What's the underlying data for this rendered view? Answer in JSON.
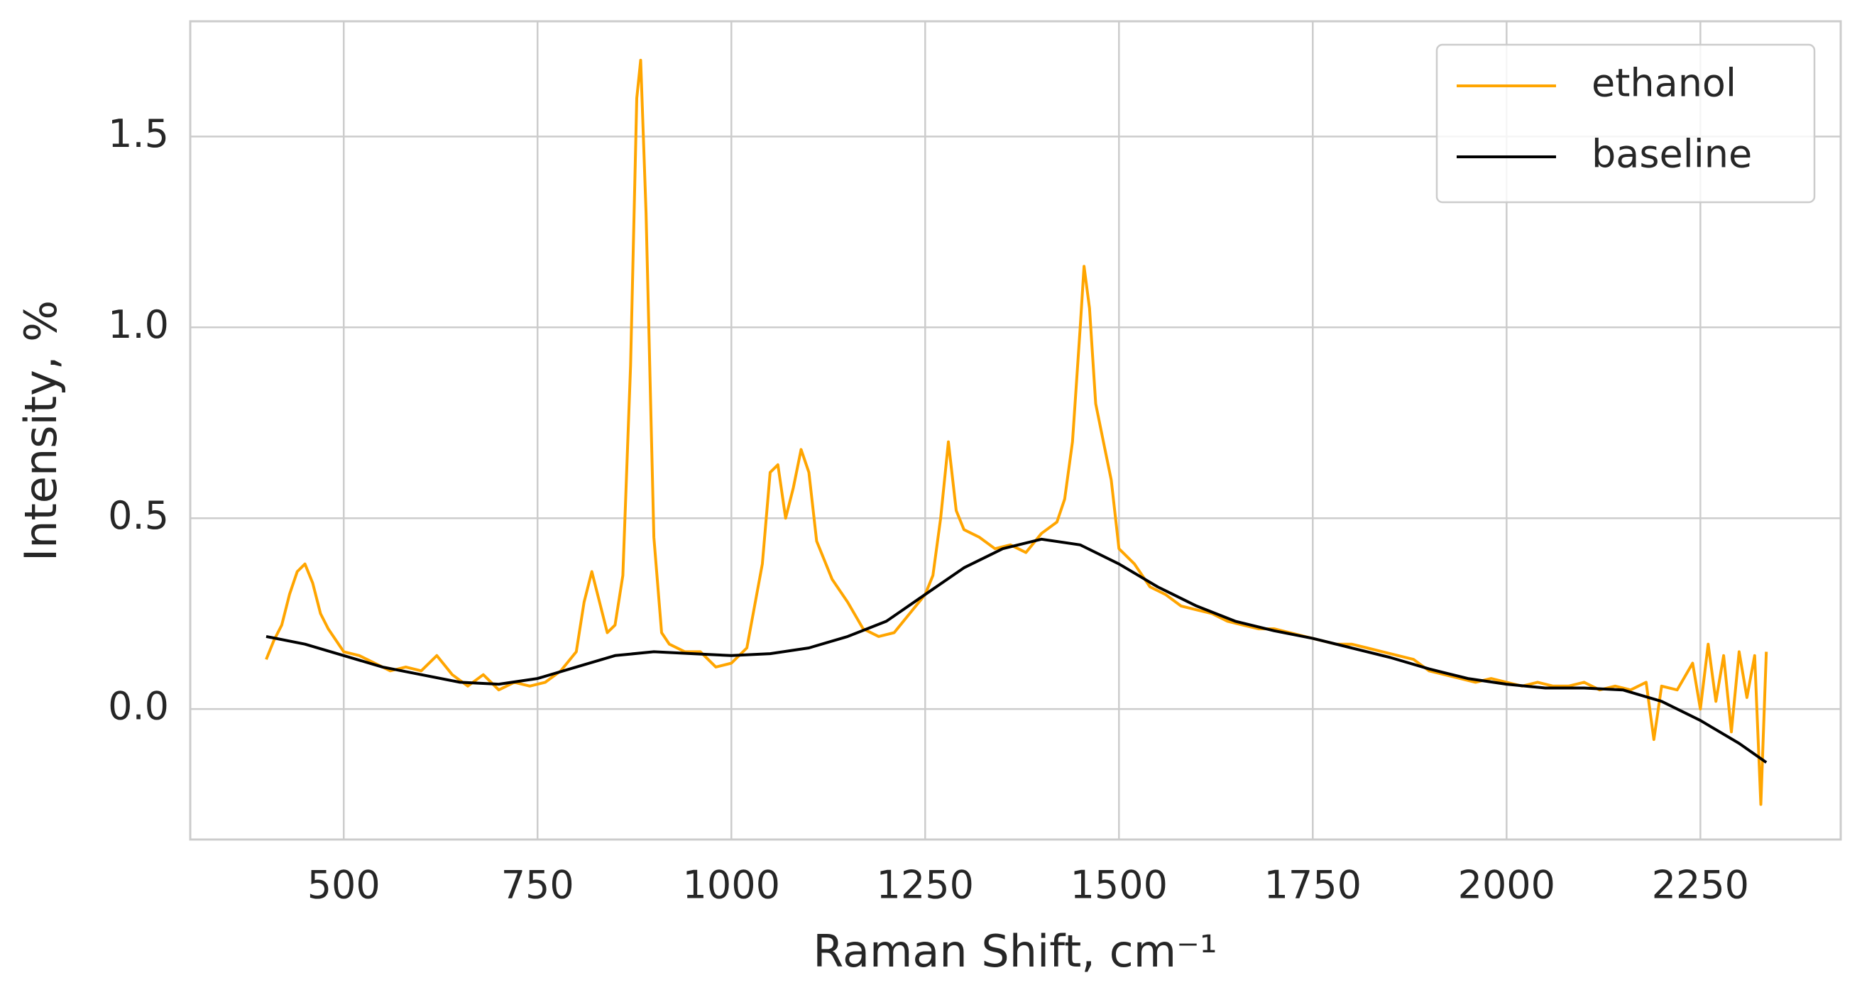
{
  "chart_data": {
    "type": "line",
    "xlabel": "Raman Shift, cm⁻¹",
    "ylabel": "Intensity, %",
    "xlim": [
      302,
      2431
    ],
    "ylim": [
      -0.342,
      1.802
    ],
    "xticks": [
      500,
      750,
      1000,
      1250,
      1500,
      1750,
      2000,
      2250
    ],
    "yticks": [
      {
        "value": 0,
        "label": "0.0"
      },
      0.5,
      {
        "value": 1,
        "label": "1.0"
      },
      1.5
    ],
    "grid": true,
    "legend": "upper right",
    "series": [
      {
        "name": "ethanol",
        "color": "#ffa500",
        "x": [
          400,
          410,
          420,
          430,
          440,
          450,
          460,
          470,
          480,
          490,
          500,
          520,
          540,
          560,
          580,
          600,
          620,
          640,
          660,
          680,
          700,
          720,
          740,
          760,
          780,
          800,
          810,
          820,
          830,
          840,
          850,
          860,
          870,
          878,
          883,
          890,
          900,
          910,
          920,
          940,
          960,
          980,
          1000,
          1020,
          1040,
          1050,
          1060,
          1070,
          1080,
          1090,
          1100,
          1110,
          1130,
          1150,
          1170,
          1190,
          1210,
          1230,
          1250,
          1260,
          1270,
          1280,
          1290,
          1300,
          1320,
          1340,
          1360,
          1380,
          1400,
          1420,
          1430,
          1440,
          1450,
          1455,
          1462,
          1470,
          1480,
          1490,
          1500,
          1520,
          1540,
          1560,
          1580,
          1600,
          1620,
          1640,
          1660,
          1680,
          1700,
          1720,
          1740,
          1760,
          1780,
          1800,
          1820,
          1840,
          1860,
          1880,
          1900,
          1920,
          1940,
          1960,
          1980,
          2000,
          2020,
          2040,
          2060,
          2080,
          2100,
          2120,
          2140,
          2160,
          2180,
          2190,
          2200,
          2220,
          2240,
          2250,
          2260,
          2270,
          2280,
          2290,
          2300,
          2310,
          2320,
          2328,
          2335
        ],
        "values": [
          0.13,
          0.18,
          0.22,
          0.3,
          0.36,
          0.38,
          0.33,
          0.25,
          0.21,
          0.18,
          0.15,
          0.14,
          0.12,
          0.1,
          0.11,
          0.1,
          0.14,
          0.09,
          0.06,
          0.09,
          0.05,
          0.07,
          0.06,
          0.07,
          0.1,
          0.15,
          0.28,
          0.36,
          0.28,
          0.2,
          0.22,
          0.35,
          0.9,
          1.6,
          1.7,
          1.3,
          0.45,
          0.2,
          0.17,
          0.15,
          0.15,
          0.11,
          0.12,
          0.16,
          0.38,
          0.62,
          0.64,
          0.5,
          0.58,
          0.68,
          0.62,
          0.44,
          0.34,
          0.28,
          0.21,
          0.19,
          0.2,
          0.25,
          0.3,
          0.35,
          0.5,
          0.7,
          0.52,
          0.47,
          0.45,
          0.42,
          0.43,
          0.41,
          0.46,
          0.49,
          0.55,
          0.7,
          1.0,
          1.16,
          1.05,
          0.8,
          0.7,
          0.6,
          0.42,
          0.38,
          0.32,
          0.3,
          0.27,
          0.26,
          0.25,
          0.23,
          0.22,
          0.21,
          0.21,
          0.2,
          0.19,
          0.18,
          0.17,
          0.17,
          0.16,
          0.15,
          0.14,
          0.13,
          0.1,
          0.09,
          0.08,
          0.07,
          0.08,
          0.07,
          0.06,
          0.07,
          0.06,
          0.06,
          0.07,
          0.05,
          0.06,
          0.05,
          0.07,
          -0.08,
          0.06,
          0.05,
          0.12,
          0.0,
          0.17,
          0.02,
          0.14,
          -0.06,
          0.15,
          0.03,
          0.14,
          -0.25,
          0.15
        ]
      },
      {
        "name": "baseline",
        "color": "#000000",
        "x": [
          400,
          450,
          500,
          550,
          600,
          650,
          700,
          750,
          800,
          850,
          900,
          950,
          1000,
          1050,
          1100,
          1150,
          1200,
          1250,
          1300,
          1350,
          1400,
          1450,
          1500,
          1550,
          1600,
          1650,
          1700,
          1750,
          1800,
          1850,
          1900,
          1950,
          2000,
          2050,
          2100,
          2150,
          2200,
          2250,
          2300,
          2335
        ],
        "values": [
          0.19,
          0.17,
          0.14,
          0.11,
          0.09,
          0.07,
          0.065,
          0.08,
          0.11,
          0.14,
          0.15,
          0.145,
          0.14,
          0.145,
          0.16,
          0.19,
          0.23,
          0.3,
          0.37,
          0.42,
          0.445,
          0.43,
          0.38,
          0.32,
          0.27,
          0.23,
          0.205,
          0.185,
          0.16,
          0.135,
          0.105,
          0.08,
          0.065,
          0.055,
          0.055,
          0.05,
          0.02,
          -0.03,
          -0.09,
          -0.14
        ]
      }
    ]
  }
}
